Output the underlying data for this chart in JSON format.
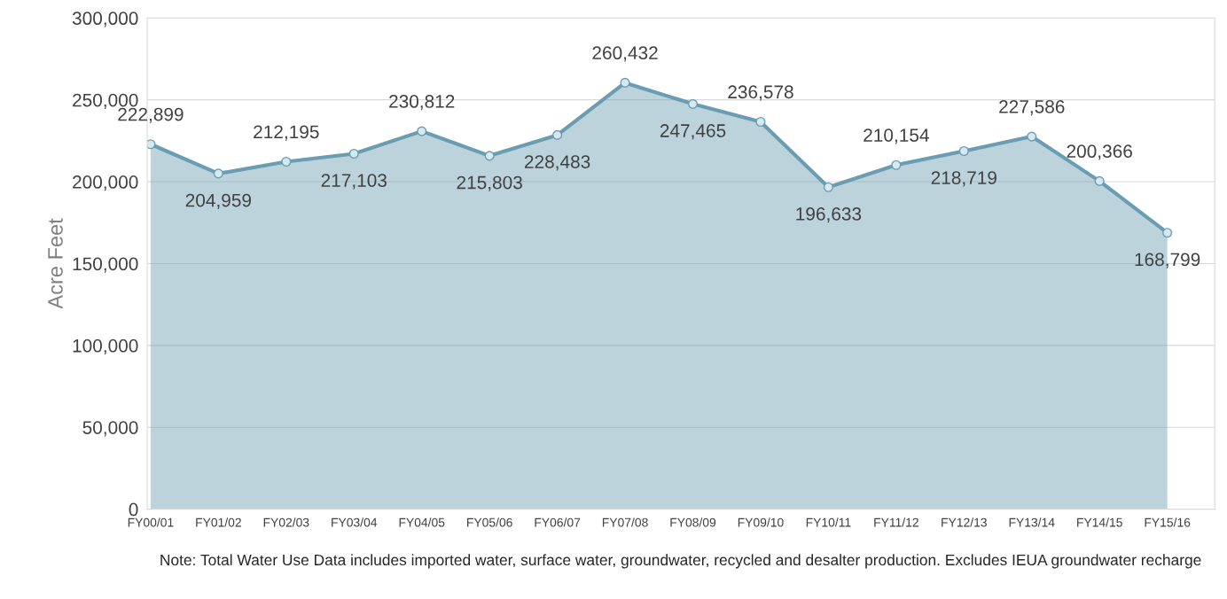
{
  "chart_data": {
    "type": "area",
    "ylabel": "Acre Feet",
    "categories": [
      "FY00/01",
      "FY01/02",
      "FY02/03",
      "FY03/04",
      "FY04/05",
      "FY05/06",
      "FY06/07",
      "FY07/08",
      "FY08/09",
      "FY09/10",
      "FY10/11",
      "FY11/12",
      "FY12/13",
      "FY13/14",
      "FY14/15",
      "FY15/16"
    ],
    "series": [
      {
        "color": "#6a9db2",
        "values": [
          222899,
          204959,
          212195,
          217103,
          230812,
          215803,
          228483,
          260432,
          247465,
          236578,
          196633,
          210154,
          218719,
          227586,
          200366,
          168799
        ]
      }
    ],
    "value_labels": [
      "222,899",
      "204,959",
      "212,195",
      "217,103",
      "230,812",
      "215,803",
      "228,483",
      "260,432",
      "247,465",
      "236,578",
      "196,633",
      "210,154",
      "218,719",
      "227,586",
      "200,366",
      "168,799"
    ],
    "ylim": [
      0,
      300000
    ],
    "yticks": [
      {
        "value": 0,
        "label": "0"
      },
      {
        "value": 50000,
        "label": "50,000"
      },
      {
        "value": 100000,
        "label": "100,000"
      },
      {
        "value": 150000,
        "label": "150,000"
      },
      {
        "value": 200000,
        "label": "200,000"
      },
      {
        "value": 250000,
        "label": "250,000"
      },
      {
        "value": 300000,
        "label": "300,000"
      }
    ],
    "grid": "y",
    "marker": "circle",
    "line_style": "solid",
    "annotations": [
      "Note: Total Water Use Data includes imported water, surface water, groundwater, recycled and desalter production. Excludes IEUA groundwater recharge"
    ]
  }
}
